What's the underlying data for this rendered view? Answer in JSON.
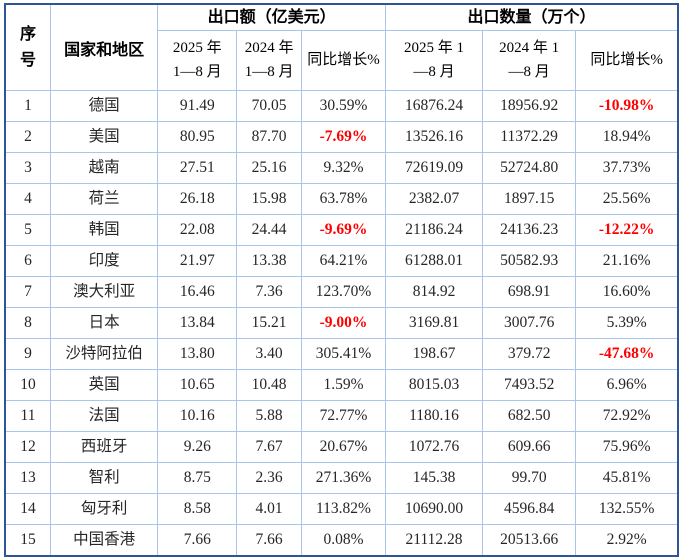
{
  "table": {
    "columns": {
      "serial": "序号",
      "country": "国家和地区",
      "export_group": "出口额（亿美元）",
      "qty_group": "出口数量（万个）",
      "export_2025": "2025 年\n1—8 月",
      "export_2024": "2024 年\n1—8 月",
      "export_yoy": "同比增长%",
      "qty_2025": "2025 年 1\n—8 月",
      "qty_2024": "2024 年 1\n—8 月",
      "qty_yoy": "同比增长%"
    },
    "rows": [
      {
        "no": "1",
        "country": "德国",
        "export_2025": "91.49",
        "export_2024": "70.05",
        "export_yoy": "30.59%",
        "qty_2025": "16876.24",
        "qty_2024": "18956.92",
        "qty_yoy": "-10.98%"
      },
      {
        "no": "2",
        "country": "美国",
        "export_2025": "80.95",
        "export_2024": "87.70",
        "export_yoy": "-7.69%",
        "qty_2025": "13526.16",
        "qty_2024": "11372.29",
        "qty_yoy": "18.94%"
      },
      {
        "no": "3",
        "country": "越南",
        "export_2025": "27.51",
        "export_2024": "25.16",
        "export_yoy": "9.32%",
        "qty_2025": "72619.09",
        "qty_2024": "52724.80",
        "qty_yoy": "37.73%"
      },
      {
        "no": "4",
        "country": "荷兰",
        "export_2025": "26.18",
        "export_2024": "15.98",
        "export_yoy": "63.78%",
        "qty_2025": "2382.07",
        "qty_2024": "1897.15",
        "qty_yoy": "25.56%"
      },
      {
        "no": "5",
        "country": "韩国",
        "export_2025": "22.08",
        "export_2024": "24.44",
        "export_yoy": "-9.69%",
        "qty_2025": "21186.24",
        "qty_2024": "24136.23",
        "qty_yoy": "-12.22%"
      },
      {
        "no": "6",
        "country": "印度",
        "export_2025": "21.97",
        "export_2024": "13.38",
        "export_yoy": "64.21%",
        "qty_2025": "61288.01",
        "qty_2024": "50582.93",
        "qty_yoy": "21.16%"
      },
      {
        "no": "7",
        "country": "澳大利亚",
        "export_2025": "16.46",
        "export_2024": "7.36",
        "export_yoy": "123.70%",
        "qty_2025": "814.92",
        "qty_2024": "698.91",
        "qty_yoy": "16.60%"
      },
      {
        "no": "8",
        "country": "日本",
        "export_2025": "13.84",
        "export_2024": "15.21",
        "export_yoy": "-9.00%",
        "qty_2025": "3169.81",
        "qty_2024": "3007.76",
        "qty_yoy": "5.39%"
      },
      {
        "no": "9",
        "country": "沙特阿拉伯",
        "export_2025": "13.80",
        "export_2024": "3.40",
        "export_yoy": "305.41%",
        "qty_2025": "198.67",
        "qty_2024": "379.72",
        "qty_yoy": "-47.68%"
      },
      {
        "no": "10",
        "country": "英国",
        "export_2025": "10.65",
        "export_2024": "10.48",
        "export_yoy": "1.59%",
        "qty_2025": "8015.03",
        "qty_2024": "7493.52",
        "qty_yoy": "6.96%"
      },
      {
        "no": "11",
        "country": "法国",
        "export_2025": "10.16",
        "export_2024": "5.88",
        "export_yoy": "72.77%",
        "qty_2025": "1180.16",
        "qty_2024": "682.50",
        "qty_yoy": "72.92%"
      },
      {
        "no": "12",
        "country": "西班牙",
        "export_2025": "9.26",
        "export_2024": "7.67",
        "export_yoy": "20.67%",
        "qty_2025": "1072.76",
        "qty_2024": "609.66",
        "qty_yoy": "75.96%"
      },
      {
        "no": "13",
        "country": "智利",
        "export_2025": "8.75",
        "export_2024": "2.36",
        "export_yoy": "271.36%",
        "qty_2025": "145.38",
        "qty_2024": "99.70",
        "qty_yoy": "45.81%"
      },
      {
        "no": "14",
        "country": "匈牙利",
        "export_2025": "8.58",
        "export_2024": "4.01",
        "export_yoy": "113.82%",
        "qty_2025": "10690.00",
        "qty_2024": "4596.84",
        "qty_yoy": "132.55%"
      },
      {
        "no": "15",
        "country": "中国香港",
        "export_2025": "7.66",
        "export_2024": "7.66",
        "export_yoy": "0.08%",
        "qty_2025": "21112.28",
        "qty_2024": "20513.66",
        "qty_yoy": "2.92%"
      }
    ]
  },
  "colors": {
    "outer_border": "#2F5597",
    "grid_line": "#A8C6EA",
    "header_text": "#000000",
    "body_text": "#262626",
    "negative_value": "#FF0000"
  }
}
